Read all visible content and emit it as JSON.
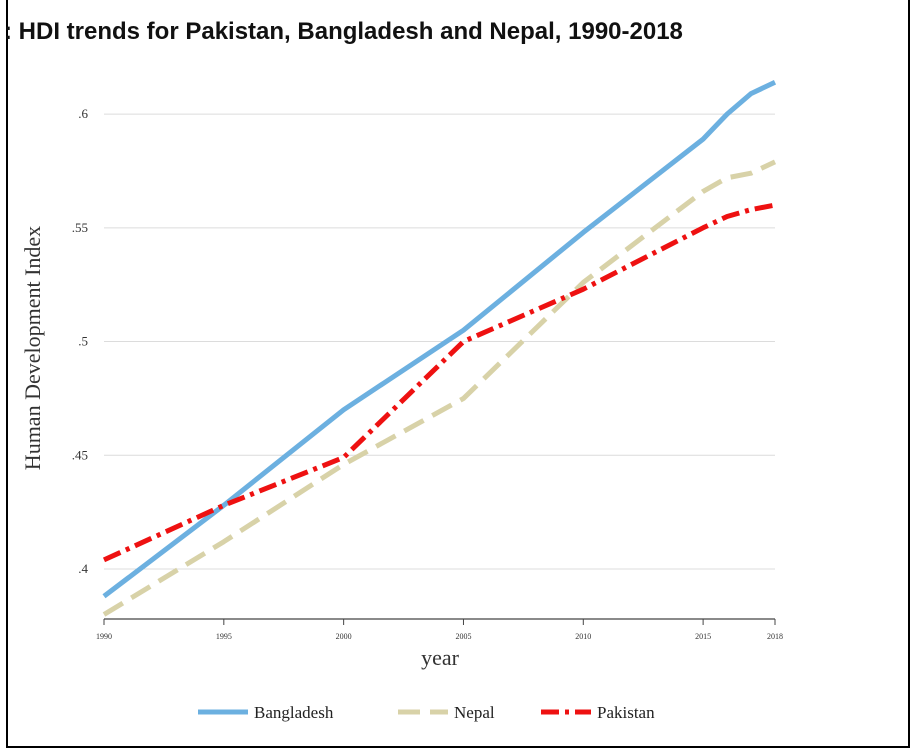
{
  "title": ": HDI trends for Pakistan, Bangladesh and Nepal, 1990-2018",
  "chart_data": {
    "type": "line",
    "title": ": HDI trends for Pakistan, Bangladesh and Nepal, 1990-2018",
    "xlabel": "year",
    "ylabel": "Human Development Index",
    "xlim": [
      1990,
      2018
    ],
    "ylim": [
      0.378,
      0.615
    ],
    "x_ticks": [
      1990,
      1995,
      2000,
      2005,
      2010,
      2015,
      2018
    ],
    "x_tick_labels": [
      "1990",
      "1995",
      "2000",
      "2005",
      "2010",
      "2015",
      "2018"
    ],
    "y_ticks": [
      0.4,
      0.45,
      0.5,
      0.55,
      0.6
    ],
    "y_tick_labels": [
      ".4",
      ".45",
      ".5",
      ".55",
      ".6"
    ],
    "grid": "horizontal",
    "legend_position": "bottom",
    "x": [
      1990,
      1995,
      2000,
      2005,
      2010,
      2015,
      2016,
      2017,
      2018
    ],
    "series": [
      {
        "name": "Bangladesh",
        "color": "#6cb0e0",
        "style": "solid",
        "values": [
          0.388,
          0.428,
          0.47,
          0.505,
          0.548,
          0.589,
          0.6,
          0.609,
          0.614
        ]
      },
      {
        "name": "Nepal",
        "color": "#d8d2a8",
        "style": "dash",
        "values": [
          0.38,
          0.412,
          0.446,
          0.475,
          0.526,
          0.566,
          0.572,
          0.574,
          0.579
        ]
      },
      {
        "name": "Pakistan",
        "color": "#ee1111",
        "style": "dash-dot",
        "values": [
          0.404,
          0.428,
          0.449,
          0.5,
          0.523,
          0.55,
          0.555,
          0.558,
          0.56
        ]
      }
    ]
  }
}
